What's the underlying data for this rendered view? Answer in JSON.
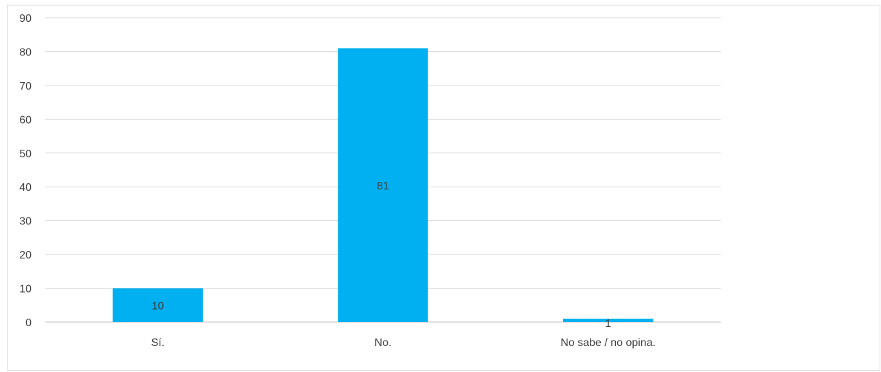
{
  "chart_data": {
    "type": "bar",
    "categories": [
      "Sí.",
      "No.",
      "No sabe / no opina."
    ],
    "values": [
      10,
      81,
      1
    ],
    "data_labels": [
      "10",
      "81",
      "1"
    ],
    "ylim": [
      0,
      90
    ],
    "yticks": [
      0,
      10,
      20,
      30,
      40,
      50,
      60,
      70,
      80,
      90
    ],
    "ytick_labels": [
      "0",
      "10",
      "20",
      "30",
      "40",
      "50",
      "60",
      "70",
      "80",
      "90"
    ],
    "grid": true,
    "legend": "none",
    "title": "",
    "xlabel": "",
    "ylabel": "",
    "colors": {
      "bar": "#00b0f0",
      "grid": "#d9d9d9",
      "text": "#404040"
    }
  }
}
